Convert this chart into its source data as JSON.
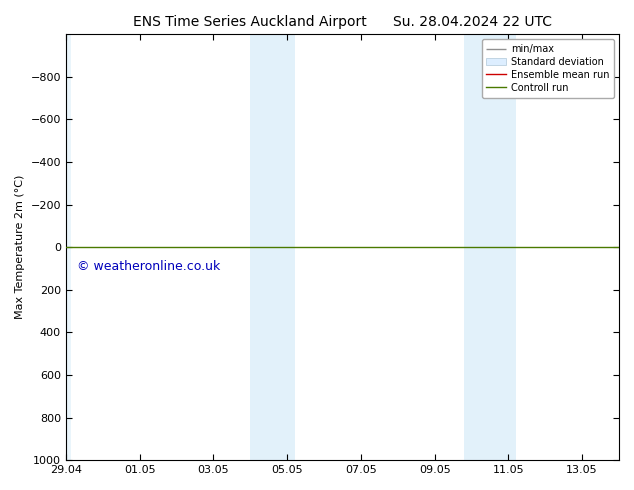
{
  "title_left": "ENS Time Series Auckland Airport",
  "title_right": "Su. 28.04.2024 22 UTC",
  "ylabel": "Max Temperature 2m (°C)",
  "ylim_bottom": 1000,
  "ylim_top": -1000,
  "yticks": [
    -800,
    -600,
    -400,
    -200,
    0,
    200,
    400,
    600,
    800,
    1000
  ],
  "xtick_labels": [
    "29.04",
    "01.05",
    "03.05",
    "05.05",
    "07.05",
    "09.05",
    "11.05",
    "13.05"
  ],
  "xtick_positions": [
    0,
    2,
    4,
    6,
    8,
    10,
    12,
    14
  ],
  "xlim": [
    0,
    15
  ],
  "shade_bands": [
    {
      "x_start": 0,
      "x_end": 0.15,
      "color": "#d6ecf8",
      "alpha": 0.5
    },
    {
      "x_start": 5.0,
      "x_end": 6.2,
      "color": "#d6ecf8",
      "alpha": 0.7
    },
    {
      "x_start": 10.8,
      "x_end": 12.2,
      "color": "#d6ecf8",
      "alpha": 0.7
    }
  ],
  "control_run_y": 0,
  "control_run_color": "#4a7a00",
  "ensemble_mean_color": "#cc0000",
  "watermark": "© weatheronline.co.uk",
  "watermark_color": "#0000bb",
  "background_color": "#ffffff",
  "plot_bg_color": "#ffffff",
  "legend_items": [
    "min/max",
    "Standard deviation",
    "Ensemble mean run",
    "Controll run"
  ],
  "legend_colors_line": [
    "#909090",
    "#c8c8c8",
    "#cc0000",
    "#4a7a00"
  ],
  "title_fontsize": 10,
  "axis_fontsize": 8,
  "tick_fontsize": 8,
  "watermark_fontsize": 9
}
